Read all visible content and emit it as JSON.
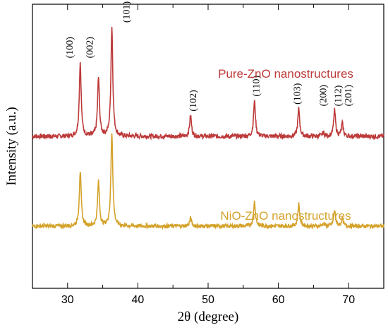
{
  "chart_data": {
    "type": "line",
    "title": "",
    "xlabel": "2θ (degree)",
    "ylabel": "Intensity (a.u.)",
    "xlim": [
      25,
      75
    ],
    "ylim": [
      0,
      1
    ],
    "xticks": [
      30,
      40,
      50,
      60,
      70
    ],
    "show_yticks": false,
    "grid": false,
    "series": [
      {
        "name": "Pure-ZnO nanostructures",
        "color": "#bd3a3a",
        "baseline": 0.535,
        "noise": 0.008,
        "x": [
          31.8,
          34.4,
          36.3,
          47.5,
          56.6,
          62.9,
          66.4,
          68.0,
          69.1
        ],
        "values": [
          0.795,
          0.74,
          0.92,
          0.608,
          0.66,
          0.632,
          0.548,
          0.626,
          0.58
        ]
      },
      {
        "name": "NiO-ZnO nanostructures",
        "color": "#d4a22b",
        "baseline": 0.219,
        "noise": 0.007,
        "x": [
          31.8,
          34.4,
          36.3,
          47.5,
          56.6,
          62.9,
          66.4,
          68.0,
          69.1
        ],
        "values": [
          0.412,
          0.374,
          0.548,
          0.247,
          0.306,
          0.297,
          0.228,
          0.274,
          0.245
        ]
      }
    ],
    "annotations": [
      {
        "text": "(100)",
        "x": 30.2
      },
      {
        "text": "(002)",
        "x": 33.1
      },
      {
        "text": "(101)",
        "x": 38.3
      },
      {
        "text": "(102)",
        "x": 47.8
      },
      {
        "text": "(110)",
        "x": 56.8
      },
      {
        "text": "(103)",
        "x": 62.6
      },
      {
        "text": "(200)",
        "x": 66.3
      },
      {
        "text": "(112)",
        "x": 68.4
      },
      {
        "text": "(201)",
        "x": 69.9
      }
    ]
  }
}
